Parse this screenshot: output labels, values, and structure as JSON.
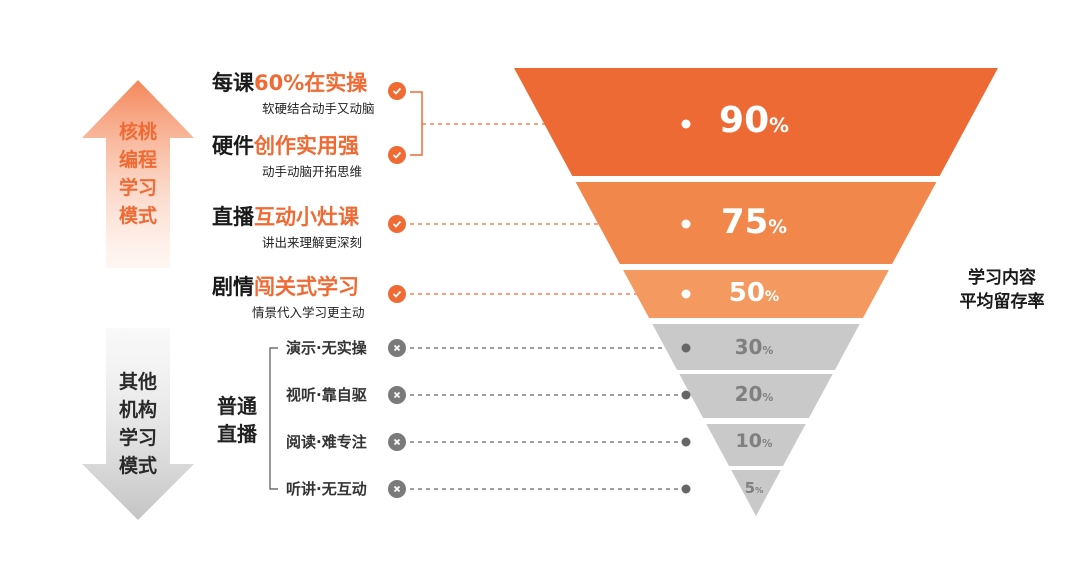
{
  "colors": {
    "accent": "#f06a34",
    "band1": "#ee6a34",
    "band2": "#f2874c",
    "band3": "#f49a60",
    "grey": "#c9c9c9",
    "greyText": "#7f7f7f",
    "dark": "#1a1a1a"
  },
  "left_arrows": {
    "top": {
      "text": [
        "核桃",
        "编程",
        "学习",
        "模式"
      ]
    },
    "bottom": {
      "text": [
        "其他",
        "机构",
        "学习",
        "模式"
      ]
    }
  },
  "features": [
    {
      "prefix": "每课",
      "highlight": "60%在实操",
      "sub": "软硬结合动手又动脑",
      "icon": "check-icon"
    },
    {
      "prefix": "硬件",
      "highlight": "创作实用强",
      "sub": "动手动脑开拓思维",
      "icon": "check-icon"
    },
    {
      "prefix": "直播",
      "highlight": "互动小灶课",
      "sub": "讲出来理解更深刻",
      "icon": "check-icon"
    },
    {
      "prefix": "剧情",
      "highlight": "闯关式学习",
      "sub": "情景代入学习更主动",
      "icon": "check-icon"
    }
  ],
  "normal_group_label": [
    "普通",
    "直播"
  ],
  "normal_items": [
    {
      "label": "演示·无实操",
      "icon": "cross-icon"
    },
    {
      "label": "视听·靠自驱",
      "icon": "cross-icon"
    },
    {
      "label": "阅读·难专注",
      "icon": "cross-icon"
    },
    {
      "label": "听讲·无互动",
      "icon": "cross-icon"
    }
  ],
  "funnel": [
    {
      "value": 90,
      "num": "90",
      "unit": "%",
      "color": "#ee6a34"
    },
    {
      "value": 75,
      "num": "75",
      "unit": "%",
      "color": "#f2874c"
    },
    {
      "value": 50,
      "num": "50",
      "unit": "%",
      "color": "#f49a60"
    },
    {
      "value": 30,
      "num": "30",
      "unit": "%",
      "color": "#c9c9c9"
    },
    {
      "value": 20,
      "num": "20",
      "unit": "%",
      "color": "#c9c9c9"
    },
    {
      "value": 10,
      "num": "10",
      "unit": "%",
      "color": "#c9c9c9"
    },
    {
      "value": 5,
      "num": "5",
      "unit": "%",
      "color": "#c9c9c9"
    }
  ],
  "right_label": [
    "学习内容",
    "平均留存率"
  ]
}
